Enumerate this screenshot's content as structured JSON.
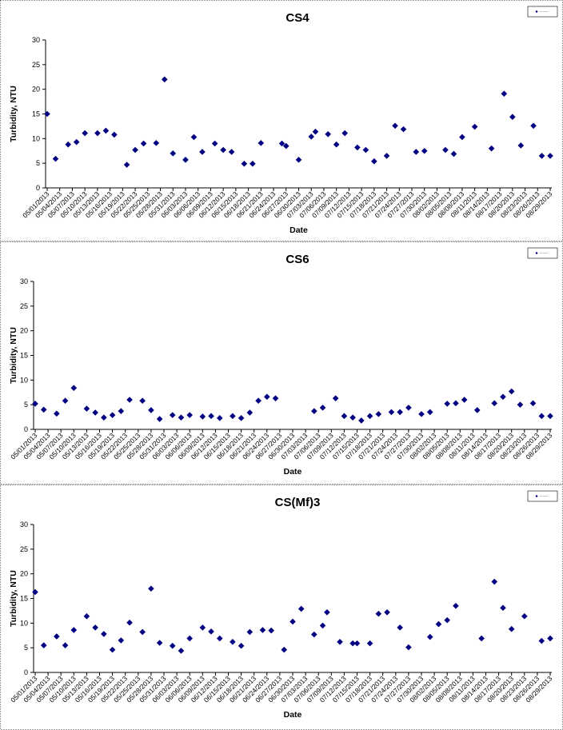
{
  "chart_data": [
    {
      "type": "scatter",
      "title": "CS4",
      "x_label": "Date",
      "y_label": "Turbidity, NTU",
      "color": "#000080",
      "ylim": [
        0,
        30
      ],
      "yticks": [
        0,
        5,
        10,
        15,
        20,
        25,
        30
      ],
      "xlim": [
        "05/01/2013",
        "08/29/2013"
      ],
      "xticks": [
        "05/01/2013",
        "05/04/2013",
        "05/07/2013",
        "05/10/2013",
        "05/13/2013",
        "05/16/2013",
        "05/19/2013",
        "05/22/2013",
        "05/25/2013",
        "05/28/2013",
        "05/31/2013",
        "06/03/2013",
        "06/06/2013",
        "06/09/2013",
        "06/12/2013",
        "06/15/2013",
        "06/18/2013",
        "06/21/2013",
        "06/24/2013",
        "06/27/2013",
        "06/30/2013",
        "07/03/2013",
        "07/06/2013",
        "07/09/2013",
        "07/12/2013",
        "07/15/2013",
        "07/18/2013",
        "07/21/2013",
        "07/24/2013",
        "07/27/2013",
        "07/30/2013",
        "08/02/2013",
        "08/05/2013",
        "08/08/2013",
        "08/11/2013",
        "08/14/2013",
        "08/17/2013",
        "08/20/2013",
        "08/23/2013",
        "08/26/2013",
        "08/29/2013"
      ],
      "x": [
        "05/01/2013",
        "05/03/2013",
        "05/06/2013",
        "05/08/2013",
        "05/10/2013",
        "05/13/2013",
        "05/15/2013",
        "05/17/2013",
        "05/20/2013",
        "05/22/2013",
        "05/24/2013",
        "05/27/2013",
        "05/29/2013",
        "05/31/2013",
        "06/03/2013",
        "06/05/2013",
        "06/07/2013",
        "06/10/2013",
        "06/12/2013",
        "06/14/2013",
        "06/17/2013",
        "06/19/2013",
        "06/21/2013",
        "06/26/2013",
        "06/27/2013",
        "06/30/2013",
        "07/03/2013",
        "07/04/2013",
        "07/07/2013",
        "07/09/2013",
        "07/11/2013",
        "07/14/2013",
        "07/16/2013",
        "07/18/2013",
        "07/21/2013",
        "07/23/2013",
        "07/25/2013",
        "07/28/2013",
        "07/30/2013",
        "08/04/2013",
        "08/06/2013",
        "08/08/2013",
        "08/11/2013",
        "08/15/2013",
        "08/18/2013",
        "08/20/2013",
        "08/22/2013",
        "08/25/2013",
        "08/27/2013",
        "08/29/2013"
      ],
      "values": [
        15.0,
        5.9,
        8.8,
        9.3,
        11.1,
        11.1,
        11.6,
        10.8,
        4.7,
        7.7,
        9.0,
        9.1,
        22.0,
        7.0,
        5.7,
        10.3,
        7.3,
        9.0,
        7.7,
        7.3,
        4.9,
        4.9,
        9.1,
        9.0,
        8.5,
        5.7,
        10.4,
        11.4,
        10.9,
        8.8,
        11.1,
        8.2,
        7.7,
        5.4,
        6.5,
        12.6,
        11.9,
        7.3,
        7.5,
        7.7,
        6.9,
        10.3,
        12.4,
        8.0,
        19.1,
        14.4,
        8.6,
        12.6,
        6.5,
        6.5
      ]
    },
    {
      "type": "scatter",
      "title": "CS6",
      "x_label": "Date",
      "y_label": "Turbidity, NTU",
      "color": "#000080",
      "ylim": [
        0,
        30
      ],
      "yticks": [
        0,
        5,
        10,
        15,
        20,
        25,
        30
      ],
      "xlim": [
        "05/01/2013",
        "08/29/2013"
      ],
      "xticks": [
        "05/01/2013",
        "05/04/2013",
        "05/07/2013",
        "05/10/2013",
        "05/13/2013",
        "05/16/2013",
        "05/19/2013",
        "05/22/2013",
        "05/25/2013",
        "05/28/2013",
        "05/31/2013",
        "06/03/2013",
        "06/06/2013",
        "06/09/2013",
        "06/12/2013",
        "06/15/2013",
        "06/18/2013",
        "06/21/2013",
        "06/24/2013",
        "06/27/2013",
        "06/30/2013",
        "07/03/2013",
        "07/06/2013",
        "07/09/2013",
        "07/12/2013",
        "07/15/2013",
        "07/18/2013",
        "07/21/2013",
        "07/24/2013",
        "07/27/2013",
        "07/30/2013",
        "08/02/2013",
        "08/05/2013",
        "08/08/2013",
        "08/11/2013",
        "08/14/2013",
        "08/17/2013",
        "08/20/2013",
        "08/23/2013",
        "08/26/2013",
        "08/29/2013"
      ],
      "x": [
        "05/01/2013",
        "05/03/2013",
        "05/06/2013",
        "05/08/2013",
        "05/10/2013",
        "05/13/2013",
        "05/15/2013",
        "05/17/2013",
        "05/19/2013",
        "05/21/2013",
        "05/23/2013",
        "05/26/2013",
        "05/28/2013",
        "05/30/2013",
        "06/02/2013",
        "06/04/2013",
        "06/06/2013",
        "06/09/2013",
        "06/11/2013",
        "06/13/2013",
        "06/16/2013",
        "06/18/2013",
        "06/20/2013",
        "06/22/2013",
        "06/24/2013",
        "06/26/2013",
        "07/05/2013",
        "07/07/2013",
        "07/10/2013",
        "07/12/2013",
        "07/14/2013",
        "07/16/2013",
        "07/18/2013",
        "07/20/2013",
        "07/23/2013",
        "07/25/2013",
        "07/27/2013",
        "07/30/2013",
        "08/01/2013",
        "08/05/2013",
        "08/07/2013",
        "08/09/2013",
        "08/12/2013",
        "08/16/2013",
        "08/18/2013",
        "08/20/2013",
        "08/22/2013",
        "08/25/2013",
        "08/27/2013",
        "08/29/2013"
      ],
      "values": [
        5.2,
        4.0,
        3.2,
        5.8,
        8.4,
        4.2,
        3.4,
        2.4,
        2.9,
        3.7,
        6.0,
        5.8,
        3.9,
        2.1,
        2.9,
        2.4,
        2.9,
        2.6,
        2.7,
        2.3,
        2.7,
        2.3,
        3.4,
        5.8,
        6.6,
        6.3,
        3.7,
        4.4,
        6.3,
        2.7,
        2.4,
        1.8,
        2.7,
        3.1,
        3.5,
        3.5,
        4.4,
        3.1,
        3.5,
        5.2,
        5.3,
        6.0,
        3.9,
        5.3,
        6.6,
        7.7,
        5.0,
        5.3,
        2.7,
        2.7
      ]
    },
    {
      "type": "scatter",
      "title": "CS(Mf)3",
      "x_label": "Date",
      "y_label": "Turbidity, NTU",
      "color": "#000080",
      "ylim": [
        0,
        30
      ],
      "yticks": [
        0,
        5,
        10,
        15,
        20,
        25,
        30
      ],
      "xlim": [
        "05/01/2013",
        "08/29/2013"
      ],
      "xticks": [
        "05/01/2013",
        "05/04/2013",
        "05/07/2013",
        "05/10/2013",
        "05/13/2013",
        "05/16/2013",
        "05/19/2013",
        "05/22/2013",
        "05/25/2013",
        "05/28/2013",
        "05/31/2013",
        "06/03/2013",
        "06/06/2013",
        "06/09/2013",
        "06/12/2013",
        "06/15/2013",
        "06/18/2013",
        "06/21/2013",
        "06/24/2013",
        "06/27/2013",
        "06/30/2013",
        "07/03/2013",
        "07/06/2013",
        "07/09/2013",
        "07/12/2013",
        "07/15/2013",
        "07/18/2013",
        "07/21/2013",
        "07/24/2013",
        "07/27/2013",
        "07/30/2013",
        "08/02/2013",
        "08/05/2013",
        "08/08/2013",
        "08/11/2013",
        "08/14/2013",
        "08/17/2013",
        "08/20/2013",
        "08/23/2013",
        "08/26/2013",
        "08/29/2013"
      ],
      "x": [
        "05/01/2013",
        "05/03/2013",
        "05/06/2013",
        "05/08/2013",
        "05/10/2013",
        "05/13/2013",
        "05/15/2013",
        "05/17/2013",
        "05/19/2013",
        "05/21/2013",
        "05/23/2013",
        "05/26/2013",
        "05/28/2013",
        "05/30/2013",
        "06/02/2013",
        "06/04/2013",
        "06/06/2013",
        "06/09/2013",
        "06/11/2013",
        "06/13/2013",
        "06/16/2013",
        "06/18/2013",
        "06/20/2013",
        "06/23/2013",
        "06/25/2013",
        "06/28/2013",
        "06/30/2013",
        "07/02/2013",
        "07/05/2013",
        "07/07/2013",
        "07/08/2013",
        "07/11/2013",
        "07/14/2013",
        "07/15/2013",
        "07/18/2013",
        "07/20/2013",
        "07/22/2013",
        "07/25/2013",
        "07/27/2013",
        "08/01/2013",
        "08/03/2013",
        "08/05/2013",
        "08/07/2013",
        "08/13/2013",
        "08/16/2013",
        "08/18/2013",
        "08/20/2013",
        "08/23/2013",
        "08/27/2013",
        "08/29/2013"
      ],
      "values": [
        16.3,
        5.5,
        7.3,
        5.5,
        8.6,
        11.4,
        9.1,
        7.8,
        4.6,
        6.5,
        10.1,
        8.2,
        17.0,
        6.0,
        5.4,
        4.4,
        6.9,
        9.1,
        8.3,
        6.9,
        6.2,
        5.4,
        8.2,
        8.6,
        8.5,
        4.6,
        10.3,
        12.9,
        7.7,
        9.5,
        12.2,
        6.2,
        5.9,
        5.9,
        5.9,
        11.9,
        12.2,
        9.1,
        5.1,
        7.2,
        9.8,
        10.6,
        13.5,
        6.9,
        18.4,
        13.1,
        8.8,
        11.4,
        6.4,
        6.9
      ]
    }
  ]
}
